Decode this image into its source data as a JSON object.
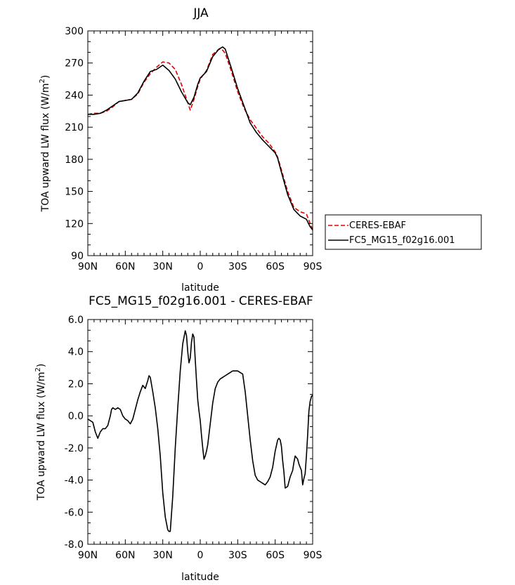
{
  "chart_data": [
    {
      "type": "line",
      "title": "JJA",
      "xlabel": "latitude",
      "ylabel": "TOA upward LW flux (W/m²)",
      "ylabel_main": "TOA upward LW flux (W/m",
      "ylabel_sup": "2",
      "ylabel_end": ")",
      "xlim": [
        90,
        -90
      ],
      "ylim": [
        90,
        300
      ],
      "x_ticks": [
        {
          "value": 90,
          "label": "90N"
        },
        {
          "value": 60,
          "label": "60N"
        },
        {
          "value": 30,
          "label": "30N"
        },
        {
          "value": 0,
          "label": "0"
        },
        {
          "value": -30,
          "label": "30S"
        },
        {
          "value": -60,
          "label": "60S"
        },
        {
          "value": -90,
          "label": "90S"
        }
      ],
      "y_ticks": [
        {
          "value": 90,
          "label": "90"
        },
        {
          "value": 120,
          "label": "120"
        },
        {
          "value": 150,
          "label": "150"
        },
        {
          "value": 180,
          "label": "180"
        },
        {
          "value": 210,
          "label": "210"
        },
        {
          "value": 240,
          "label": "240"
        },
        {
          "value": 270,
          "label": "270"
        },
        {
          "value": 300,
          "label": "300"
        }
      ],
      "grid": false,
      "legend": "right",
      "series": [
        {
          "name": "CERES-EBAF",
          "color": "#e00000",
          "dash": "dashed",
          "x": [
            90,
            85,
            80,
            75,
            70,
            65,
            60,
            55,
            50,
            45,
            40,
            35,
            30,
            25,
            20,
            15,
            10,
            8,
            5,
            2,
            0,
            -5,
            -10,
            -15,
            -18,
            -20,
            -25,
            -30,
            -35,
            -40,
            -45,
            -50,
            -55,
            -60,
            -62,
            -65,
            -70,
            -75,
            -80,
            -85,
            -88,
            -90
          ],
          "y": [
            222,
            223,
            223,
            225,
            229,
            234,
            235,
            236,
            241,
            252,
            260,
            266,
            271,
            270,
            264,
            250,
            233,
            226,
            236,
            248,
            255,
            263,
            278,
            283,
            282,
            279,
            262,
            243,
            228,
            217,
            209,
            201,
            195,
            187,
            182,
            170,
            150,
            135,
            131,
            129,
            120,
            114
          ]
        },
        {
          "name": "FC5_MG15_f02g16.001",
          "color": "#000000",
          "dash": "solid",
          "x": [
            90,
            85,
            80,
            75,
            70,
            65,
            60,
            55,
            50,
            45,
            40,
            35,
            30,
            25,
            20,
            15,
            10,
            8,
            5,
            2,
            0,
            -5,
            -10,
            -15,
            -18,
            -20,
            -25,
            -30,
            -35,
            -40,
            -45,
            -50,
            -55,
            -60,
            -62,
            -65,
            -70,
            -75,
            -80,
            -85,
            -88,
            -90
          ],
          "y": [
            222,
            222,
            223,
            226,
            230,
            234,
            235,
            236,
            242,
            253,
            262,
            264,
            268,
            263,
            255,
            243,
            233,
            231,
            238,
            250,
            256,
            262,
            276,
            283,
            285,
            283,
            265,
            246,
            230,
            214,
            205,
            198,
            192,
            186,
            181,
            168,
            147,
            133,
            127,
            124,
            117,
            114
          ]
        }
      ]
    },
    {
      "type": "line",
      "title": "FC5_MG15_f02g16.001 - CERES-EBAF",
      "xlabel": "latitude",
      "ylabel": "TOA upward LW flux (W/m²)",
      "ylabel_main": "TOA upward LW flux (W/m",
      "ylabel_sup": "2",
      "ylabel_end": ")",
      "xlim": [
        90,
        -90
      ],
      "ylim": [
        -8,
        6
      ],
      "x_ticks": [
        {
          "value": 90,
          "label": "90N"
        },
        {
          "value": 60,
          "label": "60N"
        },
        {
          "value": 30,
          "label": "30N"
        },
        {
          "value": 0,
          "label": "0"
        },
        {
          "value": -30,
          "label": "30S"
        },
        {
          "value": -60,
          "label": "60S"
        },
        {
          "value": -90,
          "label": "90S"
        }
      ],
      "y_ticks": [
        {
          "value": -8,
          "label": "-8.0"
        },
        {
          "value": -6,
          "label": "-6.0"
        },
        {
          "value": -4,
          "label": "-4.0"
        },
        {
          "value": -2,
          "label": "-2.0"
        },
        {
          "value": 0,
          "label": "0.0"
        },
        {
          "value": 2,
          "label": "2.0"
        },
        {
          "value": 4,
          "label": "4.0"
        },
        {
          "value": 6,
          "label": "6.0"
        }
      ],
      "grid": false,
      "series": [
        {
          "color": "#000000",
          "dash": "solid",
          "x": [
            90,
            88,
            86,
            84,
            82,
            80,
            78,
            76,
            74,
            72,
            71,
            70,
            68,
            66,
            64,
            62,
            60,
            58,
            56,
            54,
            52,
            50,
            48,
            46,
            44,
            42,
            41,
            40,
            38,
            36,
            34,
            32,
            30,
            28,
            26,
            25,
            24,
            22,
            20,
            18,
            16,
            14,
            12,
            11,
            10,
            9,
            8,
            7,
            6,
            5,
            4,
            3,
            2,
            1,
            0,
            -1,
            -2,
            -3,
            -4,
            -5,
            -6,
            -8,
            -10,
            -12,
            -14,
            -16,
            -18,
            -20,
            -22,
            -24,
            -26,
            -28,
            -30,
            -32,
            -34,
            -36,
            -38,
            -40,
            -42,
            -44,
            -46,
            -48,
            -50,
            -52,
            -54,
            -56,
            -58,
            -60,
            -62,
            -63,
            -64,
            -65,
            -66,
            -67,
            -68,
            -70,
            -72,
            -74,
            -75,
            -76,
            -78,
            -79,
            -80,
            -81,
            -82,
            -83,
            -84,
            -85,
            -86,
            -87,
            -88,
            -89,
            -90
          ],
          "y": [
            -0.2,
            -0.3,
            -0.4,
            -1.0,
            -1.4,
            -1.0,
            -0.8,
            -0.8,
            -0.6,
            0.0,
            0.4,
            0.5,
            0.4,
            0.5,
            0.4,
            0.0,
            -0.2,
            -0.3,
            -0.5,
            -0.2,
            0.4,
            1.0,
            1.5,
            1.9,
            1.7,
            2.2,
            2.5,
            2.4,
            1.5,
            0.5,
            -0.8,
            -2.5,
            -4.8,
            -6.3,
            -7.1,
            -7.2,
            -7.2,
            -5.0,
            -2.0,
            0.5,
            2.8,
            4.5,
            5.3,
            5.0,
            4.0,
            3.3,
            3.6,
            4.6,
            5.1,
            4.9,
            3.5,
            2.2,
            1.0,
            0.3,
            -0.3,
            -1.2,
            -2.0,
            -2.7,
            -2.5,
            -2.2,
            -1.8,
            -0.5,
            0.8,
            1.7,
            2.1,
            2.3,
            2.4,
            2.5,
            2.6,
            2.7,
            2.8,
            2.8,
            2.8,
            2.7,
            2.6,
            1.5,
            0.0,
            -1.5,
            -2.8,
            -3.7,
            -4.0,
            -4.1,
            -4.2,
            -4.3,
            -4.1,
            -3.8,
            -3.2,
            -2.2,
            -1.5,
            -1.4,
            -1.5,
            -1.9,
            -2.8,
            -3.5,
            -4.5,
            -4.4,
            -3.8,
            -3.4,
            -2.9,
            -2.5,
            -2.7,
            -3.0,
            -3.2,
            -3.4,
            -4.3,
            -3.9,
            -3.6,
            -2.5,
            -1.2,
            0.3,
            0.9,
            1.2,
            1.3
          ]
        }
      ]
    }
  ]
}
